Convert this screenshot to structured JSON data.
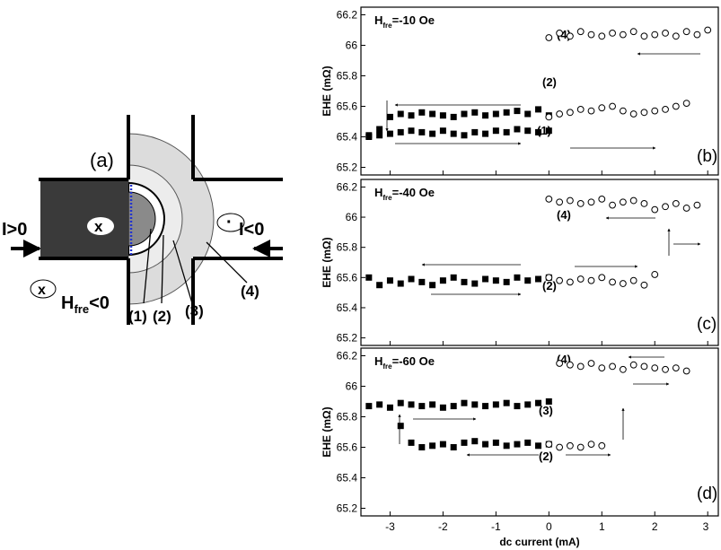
{
  "diagram": {
    "panel_label": "(a)",
    "current_left": "I>0",
    "current_right": "I<0",
    "into_symbol": "x",
    "out_symbol": "·",
    "field_symbol": "x",
    "field_h": "H",
    "field_sub": "fre",
    "field_rest": "<0",
    "labels": [
      "(1)",
      "(2)",
      "(3)",
      "(4)"
    ]
  },
  "chart_data": [
    {
      "type": "scatter",
      "heading_h": "H",
      "heading_sub": "fre",
      "heading_rest": "=-10 Oe",
      "y_label": "EHE (mΩ)",
      "annotations": [
        "(4)",
        "(2)",
        "(1)",
        "(b)"
      ],
      "xlim": [
        -3.55,
        3.2
      ],
      "xticks": [
        -3,
        -2,
        -1,
        0,
        1,
        2,
        3
      ],
      "ylim": [
        65.15,
        66.25
      ],
      "yticks": [
        65.2,
        65.4,
        65.6,
        65.8,
        66.0,
        66.2
      ],
      "series": [
        {
          "marker": "square",
          "color": "#000000",
          "x": [
            -3.4,
            -3.2,
            -3.0,
            -2.8,
            -2.6,
            -2.4,
            -2.2,
            -2.0,
            -1.8,
            -1.6,
            -1.4,
            -1.2,
            -1.0,
            -0.8,
            -0.6,
            -0.4,
            -0.2,
            0.0
          ],
          "values": [
            65.4,
            65.41,
            65.42,
            65.43,
            65.44,
            65.43,
            65.42,
            65.44,
            65.42,
            65.41,
            65.43,
            65.42,
            65.44,
            65.43,
            65.45,
            65.44,
            65.43,
            65.44
          ]
        },
        {
          "marker": "square",
          "color": "#000000",
          "x": [
            -3.4,
            -3.2,
            -3.0,
            -2.8,
            -2.6,
            -2.4,
            -2.2,
            -2.0,
            -1.8,
            -1.6,
            -1.4,
            -1.2,
            -1.0,
            -0.8,
            -0.6,
            -0.4,
            -0.2,
            0.0
          ],
          "values": [
            65.41,
            65.45,
            65.53,
            65.55,
            65.54,
            65.56,
            65.55,
            65.54,
            65.53,
            65.55,
            65.56,
            65.54,
            65.55,
            65.56,
            65.57,
            65.55,
            65.58,
            65.54
          ]
        },
        {
          "marker": "circle",
          "color": "#000000",
          "x": [
            0.0,
            0.2,
            0.4,
            0.6,
            0.8,
            1.0,
            1.2,
            1.4,
            1.6,
            1.8,
            2.0,
            2.2,
            2.4,
            2.6
          ],
          "values": [
            65.53,
            65.55,
            65.56,
            65.58,
            65.57,
            65.59,
            65.6,
            65.57,
            65.55,
            65.56,
            65.57,
            65.58,
            65.6,
            65.62
          ]
        },
        {
          "marker": "circle",
          "color": "#000000",
          "x": [
            0.0,
            0.2,
            0.4,
            0.6,
            0.8,
            1.0,
            1.2,
            1.4,
            1.6,
            1.8,
            2.0,
            2.2,
            2.4,
            2.6,
            2.8,
            3.0
          ],
          "values": [
            66.05,
            66.08,
            66.06,
            66.09,
            66.07,
            66.06,
            66.08,
            66.07,
            66.09,
            66.06,
            66.07,
            66.08,
            66.06,
            66.09,
            66.07,
            66.1
          ]
        }
      ]
    },
    {
      "type": "scatter",
      "heading_h": "H",
      "heading_sub": "fre",
      "heading_rest": "=-40 Oe",
      "y_label": "EHE (mΩ)",
      "annotations": [
        "(4)",
        "(2)",
        "(c)"
      ],
      "xlim": [
        -3.55,
        3.2
      ],
      "xticks": [
        -3,
        -2,
        -1,
        0,
        1,
        2,
        3
      ],
      "ylim": [
        65.15,
        66.25
      ],
      "yticks": [
        65.2,
        65.4,
        65.6,
        65.8,
        66.0,
        66.2
      ],
      "series": [
        {
          "marker": "square",
          "color": "#000000",
          "x": [
            -3.4,
            -3.2,
            -3.0,
            -2.8,
            -2.6,
            -2.4,
            -2.2,
            -2.0,
            -1.8,
            -1.6,
            -1.4,
            -1.2,
            -1.0,
            -0.8,
            -0.6,
            -0.4,
            -0.2,
            0.0
          ],
          "values": [
            65.6,
            65.55,
            65.58,
            65.56,
            65.59,
            65.57,
            65.55,
            65.58,
            65.6,
            65.57,
            65.56,
            65.59,
            65.58,
            65.57,
            65.6,
            65.58,
            65.59,
            65.6
          ]
        },
        {
          "marker": "circle",
          "color": "#000000",
          "x": [
            0.0,
            0.2,
            0.4,
            0.6,
            0.8,
            1.0,
            1.2,
            1.4,
            1.6,
            1.8,
            2.0
          ],
          "values": [
            65.6,
            65.58,
            65.57,
            65.59,
            65.58,
            65.6,
            65.57,
            65.56,
            65.58,
            65.55,
            65.62
          ]
        },
        {
          "marker": "circle",
          "color": "#000000",
          "x": [
            0.0,
            0.2,
            0.4,
            0.6,
            0.8,
            1.0,
            1.2,
            1.4,
            1.6,
            1.8,
            2.0,
            2.2,
            2.4,
            2.6,
            2.8
          ],
          "values": [
            66.12,
            66.1,
            66.11,
            66.09,
            66.1,
            66.12,
            66.08,
            66.1,
            66.11,
            66.09,
            66.05,
            66.07,
            66.09,
            66.06,
            66.08
          ]
        }
      ]
    },
    {
      "type": "scatter",
      "heading_h": "H",
      "heading_sub": "fre",
      "heading_rest": "=-60 Oe",
      "y_label": "EHE (mΩ)",
      "x_label": "dc current  (mA)",
      "annotations": [
        "(4)",
        "(3)",
        "(2)",
        "(d)"
      ],
      "xlim": [
        -3.55,
        3.2
      ],
      "xticks": [
        -3,
        -2,
        -1,
        0,
        1,
        2,
        3
      ],
      "ylim": [
        65.15,
        66.25
      ],
      "yticks": [
        65.2,
        65.4,
        65.6,
        65.8,
        66.0,
        66.2
      ],
      "series": [
        {
          "marker": "square",
          "color": "#000000",
          "x": [
            -3.4,
            -3.2,
            -3.0,
            -2.8,
            -2.6,
            -2.4,
            -2.2,
            -2.0,
            -1.8,
            -1.6,
            -1.4,
            -1.2,
            -1.0,
            -0.8,
            -0.6,
            -0.4,
            -0.2,
            0.0
          ],
          "values": [
            65.87,
            65.88,
            65.86,
            65.89,
            65.88,
            65.87,
            65.88,
            65.86,
            65.87,
            65.89,
            65.88,
            65.87,
            65.88,
            65.89,
            65.87,
            65.88,
            65.89,
            65.9
          ]
        },
        {
          "marker": "square",
          "color": "#000000",
          "x": [
            -2.8,
            -2.6,
            -2.4,
            -2.2,
            -2.0,
            -1.8,
            -1.6,
            -1.4,
            -1.2,
            -1.0,
            -0.8,
            -0.6,
            -0.4,
            -0.2,
            0.0
          ],
          "values": [
            65.74,
            65.63,
            65.6,
            65.61,
            65.62,
            65.6,
            65.63,
            65.64,
            65.62,
            65.63,
            65.61,
            65.62,
            65.63,
            65.61,
            65.62
          ]
        },
        {
          "marker": "circle",
          "color": "#000000",
          "x": [
            0.0,
            0.2,
            0.4,
            0.6,
            0.8,
            1.0
          ],
          "values": [
            65.62,
            65.6,
            65.61,
            65.6,
            65.62,
            65.61
          ]
        },
        {
          "marker": "circle",
          "color": "#000000",
          "x": [
            0.2,
            0.4,
            0.6,
            0.8,
            1.0,
            1.2,
            1.4,
            1.6,
            1.8,
            2.0,
            2.2,
            2.4,
            2.6
          ],
          "values": [
            66.15,
            66.14,
            66.13,
            66.15,
            66.12,
            66.13,
            66.11,
            66.14,
            66.13,
            66.12,
            66.11,
            66.12,
            66.1
          ]
        }
      ]
    }
  ]
}
